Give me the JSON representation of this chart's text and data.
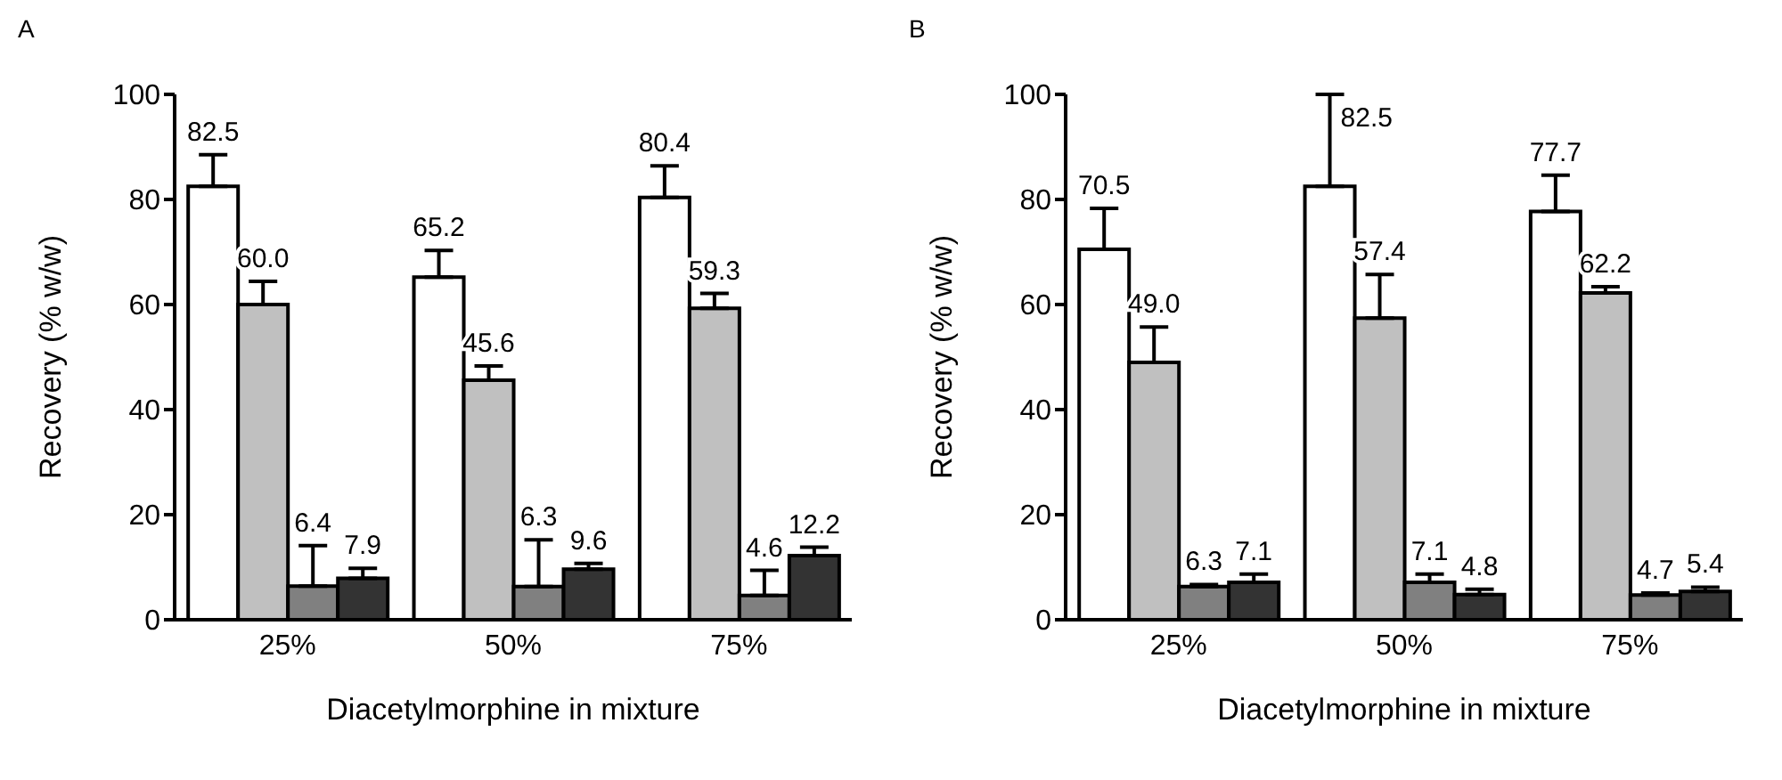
{
  "chart_data": [
    {
      "type": "bar",
      "title": "A",
      "categories": [
        "25%",
        "50%",
        "75%"
      ],
      "xlabel": "Diacetylmorphine in mixture",
      "ylabel": "Recovery (% w/w)",
      "ylim": [
        0,
        100
      ],
      "yticks": [
        0,
        20,
        40,
        60,
        80,
        100
      ],
      "grid": false,
      "legend": false,
      "series": [
        {
          "color": "#ffffff",
          "values": [
            82.5,
            65.2,
            80.4
          ],
          "value_labels": [
            "82.5",
            "65.2",
            "80.4"
          ],
          "errors": [
            [
              82.5,
              88.5
            ],
            [
              65.2,
              70.3
            ],
            [
              80.4,
              86.4
            ]
          ]
        },
        {
          "color": "#c0c0c0",
          "values": [
            60.0,
            45.6,
            59.3
          ],
          "value_labels": [
            "60.0",
            "45.6",
            "59.3"
          ],
          "errors": [
            [
              60.0,
              64.4
            ],
            [
              45.6,
              48.3
            ],
            [
              59.3,
              62.1
            ]
          ]
        },
        {
          "color": "#808080",
          "values": [
            6.4,
            6.3,
            4.6
          ],
          "value_labels": [
            "6.4",
            "6.3",
            "4.6"
          ],
          "errors": [
            [
              6.4,
              14.1
            ],
            [
              6.3,
              15.2
            ],
            [
              4.6,
              9.4
            ]
          ]
        },
        {
          "color": "#333333",
          "values": [
            7.9,
            9.6,
            12.2
          ],
          "value_labels": [
            "7.9",
            "9.6",
            "12.2"
          ],
          "errors": [
            [
              7.9,
              9.8
            ],
            [
              9.6,
              10.7
            ],
            [
              12.2,
              13.8
            ]
          ]
        }
      ]
    },
    {
      "type": "bar",
      "title": "B",
      "categories": [
        "25%",
        "50%",
        "75%"
      ],
      "xlabel": "Diacetylmorphine in mixture",
      "ylabel": "Recovery (% w/w)",
      "ylim": [
        0,
        100
      ],
      "yticks": [
        0,
        20,
        40,
        60,
        80,
        100
      ],
      "grid": false,
      "legend": false,
      "series": [
        {
          "color": "#ffffff",
          "values": [
            70.5,
            82.5,
            77.7
          ],
          "value_labels": [
            "70.5",
            "82.5",
            "77.7"
          ],
          "errors": [
            [
              70.5,
              78.3
            ],
            [
              82.5,
              100
            ],
            [
              77.7,
              84.6
            ]
          ]
        },
        {
          "color": "#c0c0c0",
          "values": [
            49.0,
            57.4,
            62.2
          ],
          "value_labels": [
            "49.0",
            "57.4",
            "62.2"
          ],
          "errors": [
            [
              49.0,
              55.7
            ],
            [
              57.4,
              65.7
            ],
            [
              62.2,
              63.4
            ]
          ]
        },
        {
          "color": "#808080",
          "values": [
            6.3,
            7.1,
            4.7
          ],
          "value_labels": [
            "6.3",
            "7.1",
            "4.7"
          ],
          "errors": [
            [
              6.3,
              6.7
            ],
            [
              7.1,
              8.7
            ],
            [
              4.7,
              5.1
            ]
          ]
        },
        {
          "color": "#333333",
          "values": [
            7.1,
            4.8,
            5.4
          ],
          "value_labels": [
            "7.1",
            "4.8",
            "5.4"
          ],
          "errors": [
            [
              7.1,
              8.7
            ],
            [
              4.8,
              5.8
            ],
            [
              5.4,
              6.2
            ]
          ]
        }
      ]
    }
  ]
}
